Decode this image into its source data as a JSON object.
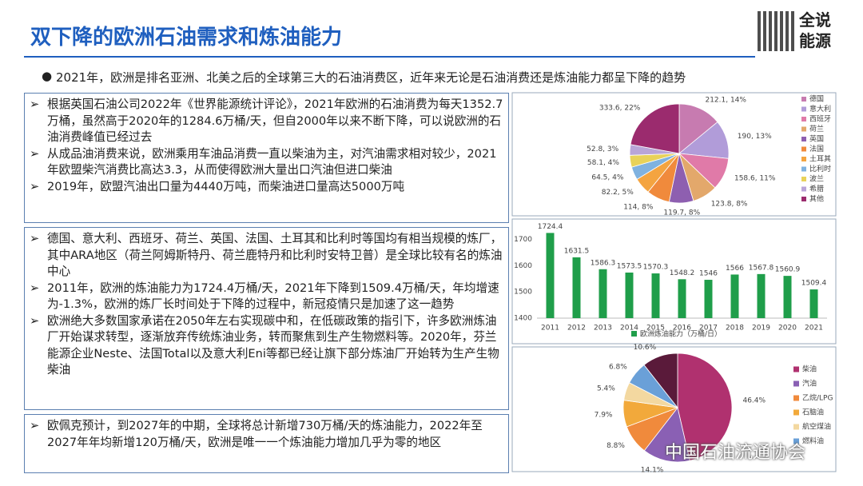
{
  "header": {
    "title": "双下降的欧洲石油需求和炼油能力",
    "logo": [
      "全说",
      "能源"
    ]
  },
  "summary": "2021年，欧洲是排名亚洲、北美之后的全球第三大的石油消费区，近年来无论是石油消费还是炼油能力都呈下降的趋势",
  "boxes": [
    [
      "根据英国石油公司2022年《世界能源统计评论》，2021年欧洲的石油消费为每天1352.7万桶，虽然高于2020年的1284.6万桶/天，但自2000年以来不断下降，可以说欧洲的石油消费峰值已经过去",
      "从成品油消费来说，欧洲乘用车油品消费一直以柴油为主，对汽油需求相对较少，2021年欧盟柴汽消费比高达3.3，从而使得欧洲大量出口汽油但进口柴油",
      "2019年，欧盟汽油出口量为4440万吨，而柴油进口量高达5000万吨"
    ],
    [
      "德国、意大利、西班牙、荷兰、英国、法国、土耳其和比利时等国均有相当规模的炼厂，其中ARA地区（荷兰阿姆斯特丹、荷兰鹿特丹和比利时安特卫普）是全球比较有名的炼油中心",
      "2011年，欧洲的炼油能力为1724.4万桶/天，2021年下降到1509.4万桶/天，年均增速为-1.3%，欧洲的炼厂长时间处于下降的过程中，新冠疫情只是加速了这一趋势",
      "欧洲绝大多数国家承诺在2050年左右实现碳中和，在低碳政策的指引下，许多欧洲炼油厂开始谋求转型，逐渐放弃传统炼油业务，转而聚焦到生产生物燃料等。2020年，芬兰能源企业Neste、法国Total以及意大利Eni等都已经让旗下部分炼油厂开始转为生产生物柴油"
    ],
    [
      "欧佩克预计，到2027年的中期，全球将总计新增730万桶/天的炼油能力，2022年至2027年年均新增120万桶/天，欧洲是唯一一个炼油能力增加几乎为零的地区"
    ]
  ],
  "watermark": "中国石油流通协会",
  "chart_data": [
    {
      "type": "pie",
      "categories": [
        "德国",
        "意大利",
        "西班牙",
        "荷兰",
        "英国",
        "法国",
        "土耳其",
        "比利时",
        "波兰",
        "希腊",
        "其他"
      ],
      "values": [
        212.1,
        190,
        158.6,
        123.8,
        119.7,
        114,
        82.2,
        64.5,
        58.1,
        52.8,
        333.6
      ],
      "value_labels": [
        "212.1, 14%",
        "190, 13%",
        "158.6, 11%",
        "123.8, 8%",
        "119.7, 8%",
        "114, 8%",
        "82.2, 5%",
        "64.5, 4%",
        "58.1, 4%",
        "52.8, 3%",
        "333.6, 22%"
      ],
      "colors": [
        "#c77bb0",
        "#b19cd9",
        "#e07aa8",
        "#e3a86b",
        "#8e5fb0",
        "#f08a3c",
        "#f4a440",
        "#7fb2e0",
        "#e8d25a",
        "#b9a5d8",
        "#9b2b6e"
      ]
    },
    {
      "type": "bar",
      "categories": [
        "2011",
        "2012",
        "2013",
        "2014",
        "2015",
        "2016",
        "2017",
        "2018",
        "2019",
        "2020",
        "2021"
      ],
      "values": [
        1724.4,
        1631.5,
        1586.3,
        1573.5,
        1570.3,
        1548.2,
        1546,
        1566,
        1567.8,
        1560.9,
        1509.4
      ],
      "color": "#1f9e4a",
      "ylim": [
        1400,
        1750
      ],
      "yticks": [
        1400,
        1500,
        1600,
        1700
      ],
      "legend": "欧洲炼油能力（万桶/日）"
    },
    {
      "type": "pie",
      "categories": [
        "柴油",
        "汽油",
        "乙烷/LPG",
        "石脑油",
        "航空煤油",
        "燃料油",
        null
      ],
      "values": [
        46.4,
        14.1,
        8.8,
        7.9,
        5.4,
        6.8,
        10.6
      ],
      "value_labels": [
        "46.4%",
        "14.1%",
        "8.8%",
        "7.9%",
        "5.4%",
        "6.8%",
        "10.6%"
      ],
      "colors": [
        "#b0316f",
        "#8a60b4",
        "#f08a3c",
        "#f2a93b",
        "#f3d8a0",
        "#6aa0d8",
        "#5a1a3a"
      ]
    }
  ]
}
